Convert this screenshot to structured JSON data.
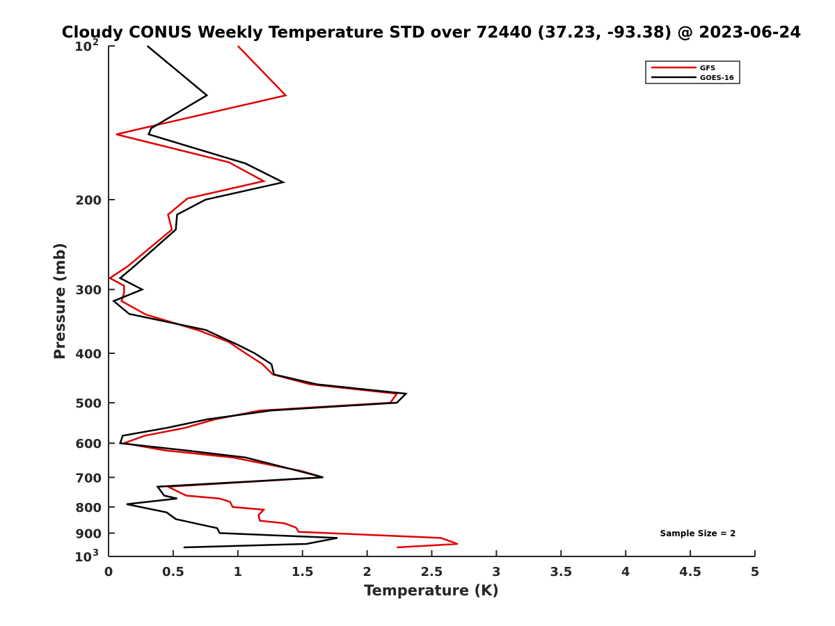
{
  "chart_data": {
    "type": "line",
    "title": "Cloudy CONUS Weekly Temperature STD over 72440 (37.23, -93.38) @ 2023-06-24",
    "xlabel": "Temperature (K)",
    "ylabel": "Pressure (mb)",
    "xlim": [
      0,
      5
    ],
    "ylim": [
      1000,
      100
    ],
    "yscale": "log",
    "y_reversed": true,
    "grid": false,
    "legend_position": "top-right",
    "x_ticks": [
      "0",
      "0.5",
      "1",
      "1.5",
      "2",
      "2.5",
      "3",
      "3.5",
      "4",
      "4.5",
      "5"
    ],
    "y_ticks": [
      {
        "value": 100,
        "base": "10",
        "exp": "2"
      },
      {
        "value": 200,
        "label": "200"
      },
      {
        "value": 300,
        "label": "300"
      },
      {
        "value": 400,
        "label": "400"
      },
      {
        "value": 500,
        "label": "500"
      },
      {
        "value": 600,
        "label": "600"
      },
      {
        "value": 700,
        "label": "700"
      },
      {
        "value": 800,
        "label": "800"
      },
      {
        "value": 900,
        "label": "900"
      },
      {
        "value": 1000,
        "base": "10",
        "exp": "3"
      }
    ],
    "annotation": "Sample Size = 2",
    "series": [
      {
        "name": "GFS",
        "color": "#e00000",
        "points": [
          [
            1.0,
            100
          ],
          [
            1.37,
            125
          ],
          [
            0.06,
            149
          ],
          [
            0.93,
            169
          ],
          [
            1.2,
            184
          ],
          [
            0.61,
            199
          ],
          [
            0.46,
            214
          ],
          [
            0.49,
            229
          ],
          [
            0.15,
            270
          ],
          [
            0.01,
            285
          ],
          [
            0.12,
            295
          ],
          [
            0.12,
            305
          ],
          [
            0.1,
            316
          ],
          [
            0.29,
            336
          ],
          [
            0.7,
            361
          ],
          [
            0.93,
            380
          ],
          [
            1.06,
            400
          ],
          [
            1.19,
            420
          ],
          [
            1.27,
            440
          ],
          [
            1.56,
            460
          ],
          [
            2.23,
            480
          ],
          [
            2.18,
            500
          ],
          [
            1.17,
            518
          ],
          [
            0.82,
            539
          ],
          [
            0.59,
            560
          ],
          [
            0.28,
            580
          ],
          [
            0.12,
            600
          ],
          [
            0.44,
            620
          ],
          [
            0.96,
            640
          ],
          [
            1.49,
            680
          ],
          [
            1.66,
            700
          ],
          [
            0.46,
            730
          ],
          [
            0.6,
            760
          ],
          [
            0.86,
            770
          ],
          [
            0.94,
            782
          ],
          [
            0.96,
            800
          ],
          [
            1.2,
            810
          ],
          [
            1.16,
            830
          ],
          [
            1.17,
            851
          ],
          [
            1.36,
            861
          ],
          [
            1.45,
            878
          ],
          [
            1.47,
            895
          ],
          [
            2.57,
            920
          ],
          [
            2.7,
            945
          ],
          [
            2.23,
            960
          ]
        ]
      },
      {
        "name": "GOES-16",
        "color": "#000000",
        "points": [
          [
            0.3,
            100
          ],
          [
            0.76,
            125
          ],
          [
            0.33,
            145
          ],
          [
            0.31,
            149
          ],
          [
            1.06,
            170
          ],
          [
            1.35,
            185
          ],
          [
            0.75,
            200
          ],
          [
            0.53,
            214
          ],
          [
            0.52,
            229
          ],
          [
            0.2,
            270
          ],
          [
            0.09,
            285
          ],
          [
            0.26,
            300
          ],
          [
            0.04,
            316
          ],
          [
            0.16,
            335
          ],
          [
            0.75,
            360
          ],
          [
            1.0,
            385
          ],
          [
            1.13,
            400
          ],
          [
            1.26,
            420
          ],
          [
            1.28,
            440
          ],
          [
            1.61,
            460
          ],
          [
            2.3,
            480
          ],
          [
            2.23,
            500
          ],
          [
            1.25,
            518
          ],
          [
            0.76,
            539
          ],
          [
            0.45,
            560
          ],
          [
            0.11,
            580
          ],
          [
            0.09,
            600
          ],
          [
            0.6,
            620
          ],
          [
            1.06,
            640
          ],
          [
            1.47,
            680
          ],
          [
            1.66,
            700
          ],
          [
            0.38,
            730
          ],
          [
            0.43,
            760
          ],
          [
            0.53,
            770
          ],
          [
            0.14,
            790
          ],
          [
            0.45,
            820
          ],
          [
            0.52,
            845
          ],
          [
            0.84,
            880
          ],
          [
            0.86,
            900
          ],
          [
            1.77,
            920
          ],
          [
            1.53,
            945
          ],
          [
            0.58,
            960
          ]
        ]
      }
    ]
  }
}
